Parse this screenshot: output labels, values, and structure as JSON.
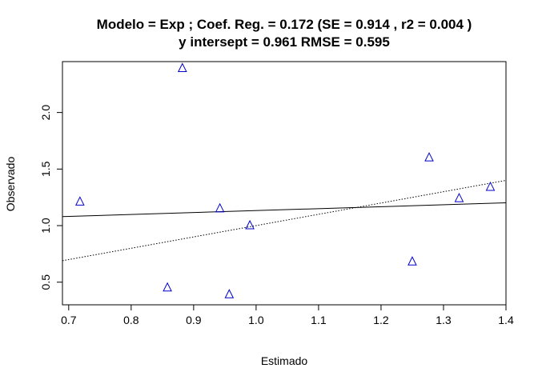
{
  "chart_data": {
    "type": "scatter",
    "title_line1": "Modelo =  Exp ; Coef. Reg. =  0.172  (SE =  0.914 , r2 =  0.004 )",
    "title_line2": "y intersept =  0.961 RMSE =  0.595",
    "xlabel": "Estimado",
    "ylabel": "Observado",
    "xlim": [
      0.69,
      1.4
    ],
    "ylim": [
      0.3,
      2.45
    ],
    "xticks": [
      "0.7",
      "0.8",
      "0.9",
      "1.0",
      "1.1",
      "1.2",
      "1.3",
      "1.4"
    ],
    "yticks": [
      "0.5",
      "1.0",
      "1.5",
      "2.0"
    ],
    "marker_color": "#0000cc",
    "points": [
      {
        "x": 0.718,
        "y": 1.21
      },
      {
        "x": 0.858,
        "y": 0.45
      },
      {
        "x": 0.882,
        "y": 2.39
      },
      {
        "x": 0.942,
        "y": 1.15
      },
      {
        "x": 0.957,
        "y": 0.39
      },
      {
        "x": 0.99,
        "y": 1.0
      },
      {
        "x": 1.25,
        "y": 0.68
      },
      {
        "x": 1.277,
        "y": 1.6
      },
      {
        "x": 1.325,
        "y": 1.24
      },
      {
        "x": 1.375,
        "y": 1.34
      }
    ],
    "regression_line": {
      "intercept": 0.961,
      "slope": 0.172,
      "style": "solid"
    },
    "identity_line": {
      "intercept": 0,
      "slope": 1,
      "style": "dotted"
    },
    "grid": false
  }
}
